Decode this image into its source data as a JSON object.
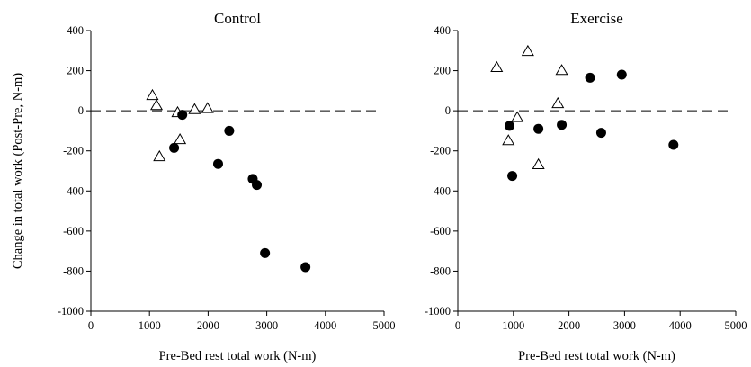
{
  "figure": {
    "ylabel": "Change in total work (Post-Pre, N-m)"
  },
  "chart_data": [
    {
      "type": "scatter",
      "title": "Control",
      "xlabel": "Pre-Bed rest total work (N-m)",
      "ylabel": "Change in total work (Post-Pre, N-m)",
      "xlim": [
        0,
        5000
      ],
      "ylim": [
        -1000,
        400
      ],
      "xticks": [
        0,
        1000,
        2000,
        3000,
        4000,
        5000
      ],
      "yticks": [
        -1000,
        -800,
        -600,
        -400,
        -200,
        0,
        200,
        400
      ],
      "reference_line": {
        "y": 0,
        "style": "dashed"
      },
      "grid": false,
      "series": [
        {
          "marker": "triangle-open",
          "points": [
            [
              1050,
              75
            ],
            [
              1120,
              25
            ],
            [
              1170,
              -230
            ],
            [
              1480,
              -10
            ],
            [
              1520,
              -145
            ],
            [
              1770,
              5
            ],
            [
              1990,
              10
            ]
          ]
        },
        {
          "marker": "circle-filled",
          "points": [
            [
              1420,
              -185
            ],
            [
              1560,
              -20
            ],
            [
              2170,
              -265
            ],
            [
              2360,
              -100
            ],
            [
              2760,
              -340
            ],
            [
              2830,
              -370
            ],
            [
              2970,
              -710
            ],
            [
              3660,
              -780
            ]
          ]
        }
      ]
    },
    {
      "type": "scatter",
      "title": "Exercise",
      "xlabel": "Pre-Bed rest total work (N-m)",
      "ylabel": "",
      "xlim": [
        0,
        5000
      ],
      "ylim": [
        -1000,
        400
      ],
      "xticks": [
        0,
        1000,
        2000,
        3000,
        4000,
        5000
      ],
      "yticks": [
        -1000,
        -800,
        -600,
        -400,
        -200,
        0,
        200,
        400
      ],
      "reference_line": {
        "y": 0,
        "style": "dashed"
      },
      "grid": false,
      "series": [
        {
          "marker": "triangle-open",
          "points": [
            [
              700,
              215
            ],
            [
              910,
              -150
            ],
            [
              1070,
              -35
            ],
            [
              1260,
              295
            ],
            [
              1450,
              -270
            ],
            [
              1800,
              35
            ],
            [
              1870,
              200
            ]
          ]
        },
        {
          "marker": "circle-filled",
          "points": [
            [
              930,
              -75
            ],
            [
              980,
              -325
            ],
            [
              1450,
              -90
            ],
            [
              1870,
              -70
            ],
            [
              2380,
              165
            ],
            [
              2580,
              -110
            ],
            [
              2950,
              180
            ],
            [
              3880,
              -170
            ]
          ]
        }
      ]
    }
  ]
}
